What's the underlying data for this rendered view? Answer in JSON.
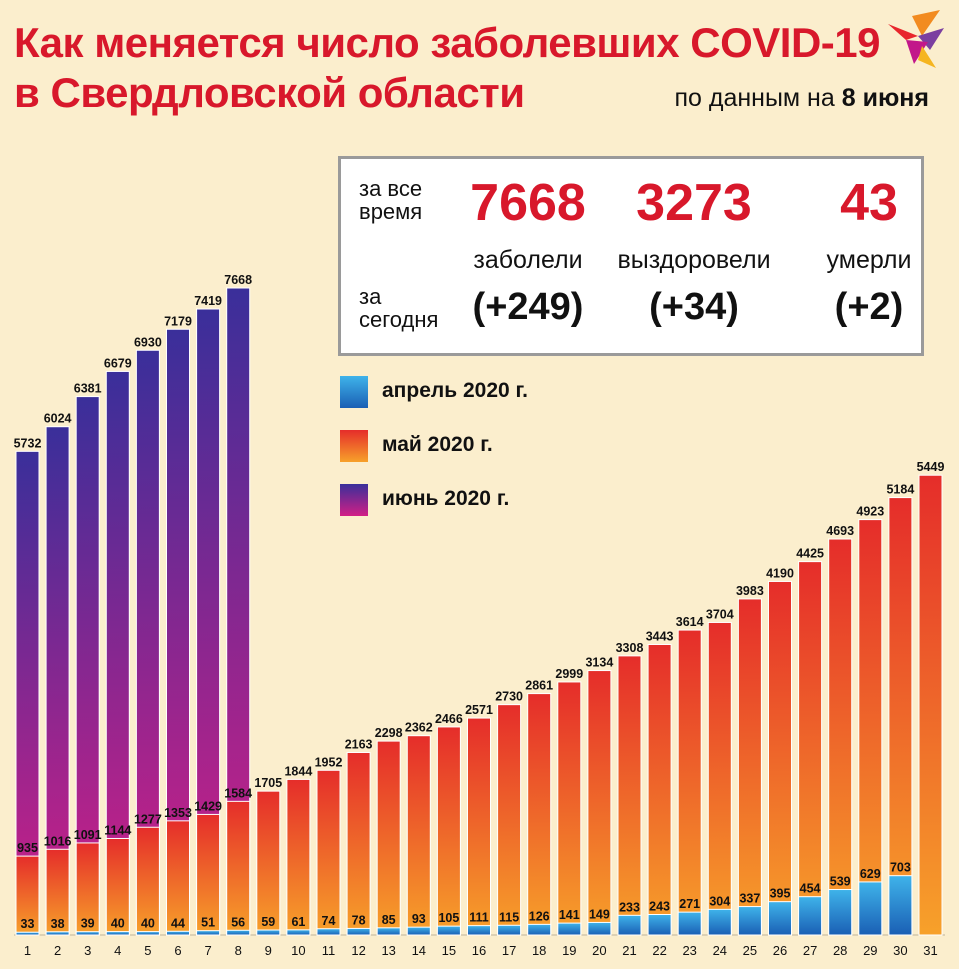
{
  "header": {
    "title_line1": "Как  меняется число  заболевших COVID-19",
    "title_line2": "в Свердловской области",
    "subtitle_prefix": "по данным на",
    "subtitle_date": "8 июня"
  },
  "summary": {
    "row1_label_a": "за все",
    "row1_label_b": "время",
    "row2_label_a": "за",
    "row2_label_b": "сегодня",
    "cases_total": "7668",
    "cases_label": "заболели",
    "cases_delta": "(+249)",
    "recovered_total": "3273",
    "recovered_label": "выздоровели",
    "recovered_delta": "(+34)",
    "deaths_total": "43",
    "deaths_label": "умерли",
    "deaths_delta": "(+2)"
  },
  "colors": {
    "title_red": "#d8182b",
    "april": [
      "#3fb3ea",
      "#1a5fb4"
    ],
    "may": [
      "#f7a12a",
      "#e52d2a"
    ],
    "june": [
      "#d21f86",
      "#3a2f9a"
    ]
  },
  "chart_data": {
    "type": "bar",
    "title": "Как  меняется число  заболевших COVID-19 в Свердловской области",
    "x": [
      1,
      2,
      3,
      4,
      5,
      6,
      7,
      8,
      9,
      10,
      11,
      12,
      13,
      14,
      15,
      16,
      17,
      18,
      19,
      20,
      21,
      22,
      23,
      24,
      25,
      26,
      27,
      28,
      29,
      30,
      31
    ],
    "ylim": [
      0,
      8000
    ],
    "grid": false,
    "legend_position": "top-center",
    "series": [
      {
        "name": "апрель 2020 г.",
        "color": "april",
        "values": [
          33,
          38,
          39,
          40,
          40,
          44,
          51,
          56,
          59,
          61,
          74,
          78,
          85,
          93,
          105,
          111,
          115,
          126,
          141,
          149,
          233,
          243,
          271,
          304,
          337,
          395,
          454,
          539,
          629,
          703,
          null
        ]
      },
      {
        "name": "май 2020 г.",
        "color": "may",
        "values": [
          935,
          1016,
          1091,
          1144,
          1277,
          1353,
          1429,
          1584,
          1705,
          1844,
          1952,
          2163,
          2298,
          2362,
          2466,
          2571,
          2730,
          2861,
          2999,
          3134,
          3308,
          3443,
          3614,
          3704,
          3983,
          4190,
          4425,
          4693,
          4923,
          5184,
          5449
        ]
      },
      {
        "name": "июнь 2020 г.",
        "color": "june",
        "values": [
          5732,
          6024,
          6381,
          6679,
          6930,
          7179,
          7419,
          7668,
          null,
          null,
          null,
          null,
          null,
          null,
          null,
          null,
          null,
          null,
          null,
          null,
          null,
          null,
          null,
          null,
          null,
          null,
          null,
          null,
          null,
          null,
          null
        ]
      }
    ]
  }
}
